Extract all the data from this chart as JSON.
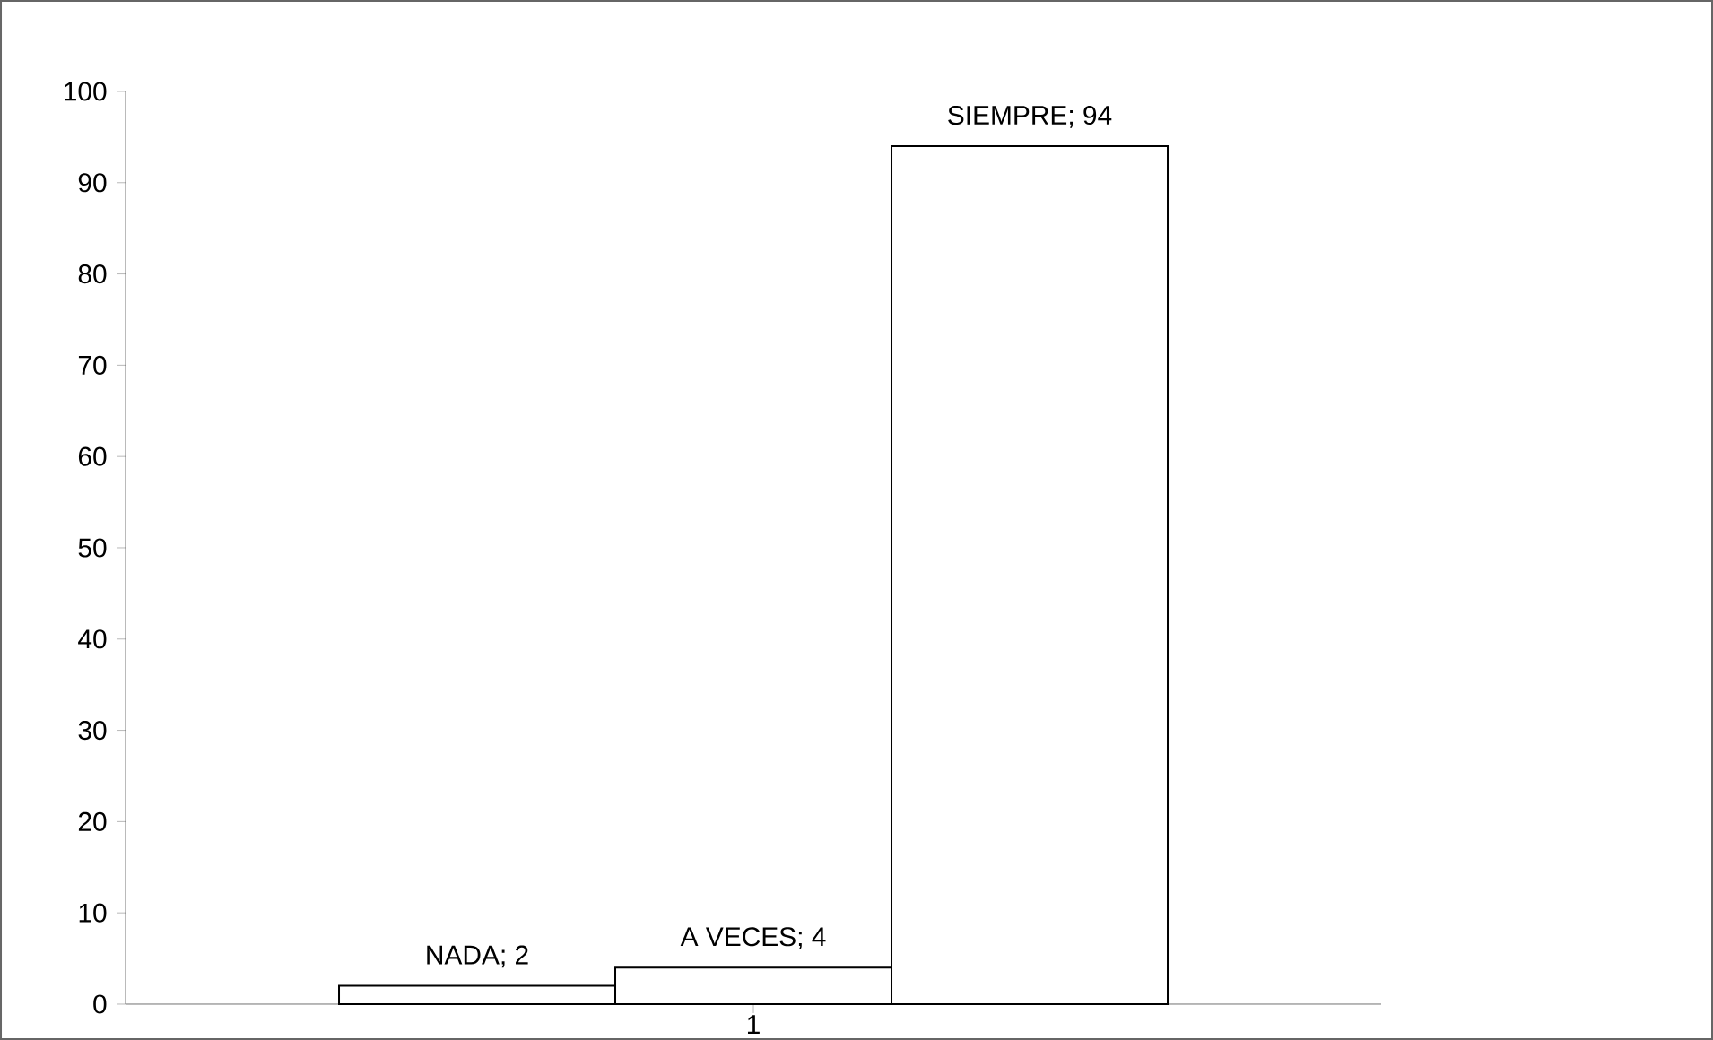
{
  "chart_data": {
    "type": "bar",
    "categories": [
      "1"
    ],
    "series": [
      {
        "color": "#ffffff",
        "values": [
          2
        ],
        "value_labels": [
          "NADA; 2"
        ]
      },
      {
        "color": "#ffffff",
        "values": [
          4
        ],
        "value_labels": [
          "A VECES; 4"
        ]
      },
      {
        "color": "#ffffff",
        "values": [
          94
        ],
        "value_labels": [
          "SIEMPRE; 94"
        ]
      }
    ],
    "ylim": [
      0,
      100
    ],
    "yticks": [
      0,
      10,
      20,
      30,
      40,
      50,
      60,
      70,
      80,
      90,
      100
    ],
    "grid": false
  }
}
